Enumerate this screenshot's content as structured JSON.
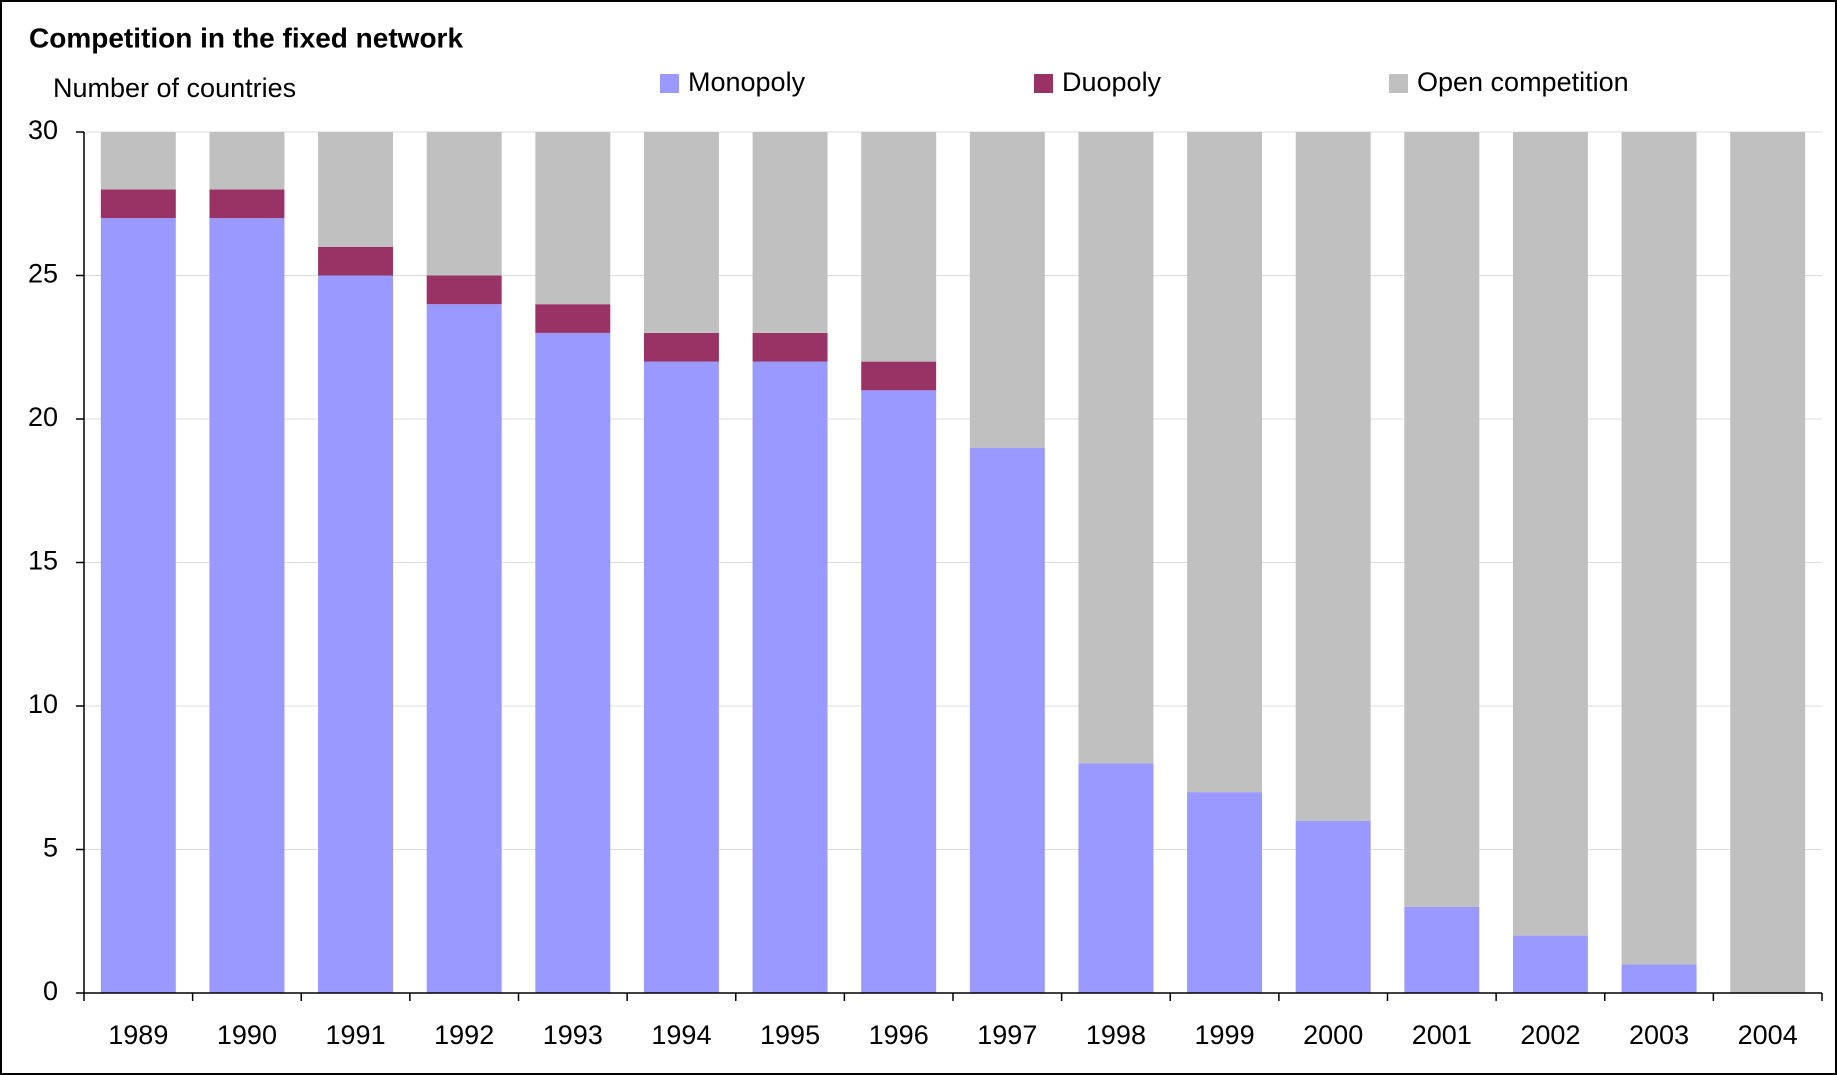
{
  "chart_data": {
    "type": "stacked_bar",
    "title": "Competition in the fixed network",
    "y_label": "Number of countries",
    "categories": [
      "1989",
      "1990",
      "1991",
      "1992",
      "1993",
      "1994",
      "1995",
      "1996",
      "1997",
      "1998",
      "1999",
      "2000",
      "2001",
      "2002",
      "2003",
      "2004"
    ],
    "series": [
      {
        "name": "Monopoly",
        "color": "#9999ff",
        "values": [
          27,
          27,
          25,
          24,
          23,
          22,
          22,
          21,
          19,
          8,
          7,
          6,
          3,
          2,
          1,
          0
        ]
      },
      {
        "name": "Duopoly",
        "color": "#993366",
        "values": [
          1,
          1,
          1,
          1,
          1,
          1,
          1,
          1,
          0,
          0,
          0,
          0,
          0,
          0,
          0,
          0
        ]
      },
      {
        "name": "Open competition",
        "color": "#c0c0c0",
        "values": [
          2,
          2,
          4,
          5,
          6,
          7,
          7,
          8,
          11,
          22,
          23,
          24,
          27,
          28,
          29,
          30
        ]
      }
    ],
    "ylim": [
      0,
      30
    ],
    "yticks": [
      0,
      5,
      10,
      15,
      20,
      25,
      30
    ],
    "grid": true
  }
}
